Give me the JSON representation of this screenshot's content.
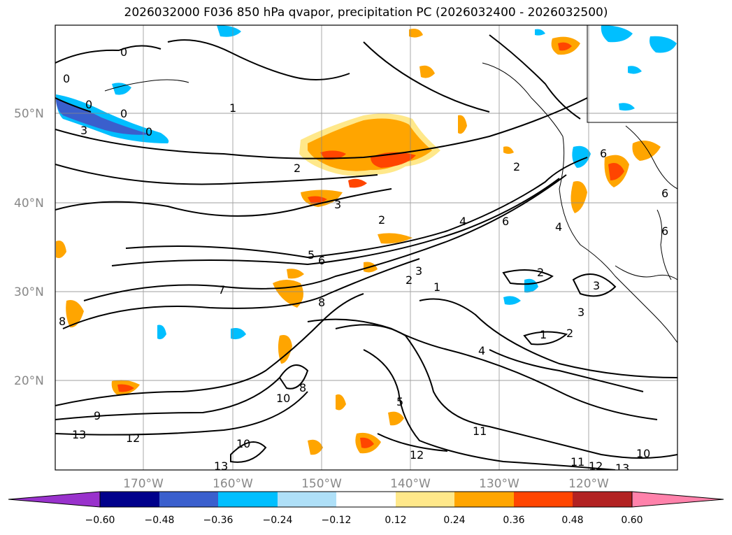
{
  "title": "2026032000 F036 850 hPa qvapor, precipitation PC (2026032400 - 2026032500)",
  "map": {
    "lon_labels": [
      "170°W",
      "160°W",
      "150°W",
      "140°W",
      "130°W",
      "120°W"
    ],
    "lat_labels": [
      "50°N",
      "40°N",
      "30°N",
      "20°N"
    ],
    "contour_labels": [
      "0",
      "0",
      "0",
      "0",
      "0",
      "3",
      "1",
      "2",
      "2",
      "3",
      "2",
      "4",
      "6",
      "5",
      "6",
      "7",
      "8",
      "8",
      "2",
      "3",
      "1",
      "3",
      "2",
      "3",
      "1",
      "2",
      "4",
      "5",
      "9",
      "13",
      "12",
      "11",
      "12",
      "13",
      "11",
      "12",
      "13",
      "10",
      "10",
      "8",
      "10",
      "6",
      "4",
      "6",
      "6"
    ]
  },
  "colorbar": {
    "ticks": [
      "−0.60",
      "−0.48",
      "−0.36",
      "−0.24",
      "−0.12",
      "0.12",
      "0.24",
      "0.36",
      "0.48",
      "0.60"
    ],
    "colors": [
      "#9932cc",
      "#00008b",
      "#3a5fcd",
      "#00bfff",
      "#afe0f8",
      "#ffffff",
      "#ffe88a",
      "#ffa500",
      "#ff4500",
      "#b22222",
      "#ff82ab"
    ]
  }
}
